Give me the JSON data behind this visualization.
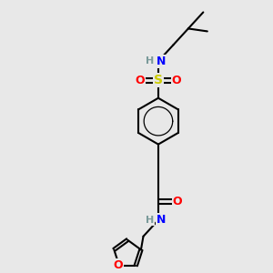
{
  "background_color": "#e8e8e8",
  "atom_colors": {
    "C": "#000000",
    "H": "#7a9a9a",
    "N": "#0000ff",
    "O": "#ff0000",
    "S": "#cccc00"
  },
  "bond_color": "#000000",
  "bond_width": 1.5,
  "figsize": [
    3.0,
    3.0
  ],
  "dpi": 100,
  "xlim": [
    0,
    10
  ],
  "ylim": [
    0,
    10
  ]
}
